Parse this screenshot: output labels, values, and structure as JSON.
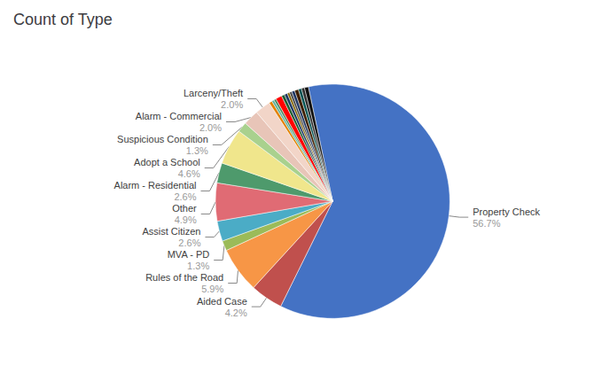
{
  "chart_data": {
    "type": "pie",
    "title": "Count of Type",
    "categories": [
      "Property Check",
      "Aided Case",
      "Rules of the Road",
      "MVA - PD",
      "Assist Citizen",
      "Other",
      "Alarm - Residential",
      "Adopt a School",
      "Suspicious Condition",
      "Alarm - Commercial",
      "Larceny/Theft",
      null,
      null,
      null,
      null,
      null,
      null,
      null,
      null,
      null,
      null,
      null,
      null,
      null
    ],
    "values": [
      56.7,
      4.2,
      5.9,
      1.3,
      2.6,
      4.9,
      2.6,
      4.6,
      1.3,
      2.0,
      2.0,
      0.4,
      0.3,
      0.3,
      0.8,
      0.4,
      0.4,
      0.3,
      0.3,
      0.4,
      0.5,
      0.4,
      0.4,
      0.5
    ],
    "value_labels": [
      "56.7%",
      "4.2%",
      "5.9%",
      "1.3%",
      "2.6%",
      "4.9%",
      "2.6%",
      "4.6%",
      "1.3%",
      "2.0%",
      "2.0%",
      null,
      null,
      null,
      null,
      null,
      null,
      null,
      null,
      null,
      null,
      null,
      null,
      null
    ],
    "colors": [
      "#4472C4",
      "#C0504D",
      "#F79646",
      "#9BBB59",
      "#4BACC6",
      "#E06B74",
      "#4E9A6C",
      "#F0E68C",
      "#A9D18E",
      "#E8C5B8",
      "#F2D5C8",
      "#E38000",
      "#5FB3A1",
      "#4B8B5E",
      "#FF0000",
      "#1F5C2E",
      "#1F3864",
      "#7F6000",
      "#404040",
      "#203864",
      "#3E1F00",
      "#005050",
      "#2D2D2D",
      "#101010"
    ],
    "data_labels": true
  }
}
